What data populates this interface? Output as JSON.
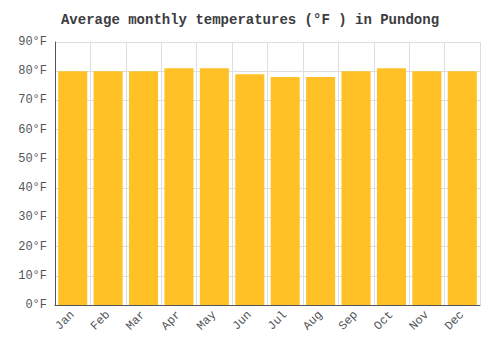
{
  "chart_data": {
    "type": "bar",
    "title": "Average monthly temperatures (°F ) in Pundong",
    "categories": [
      "Jan",
      "Feb",
      "Mar",
      "Apr",
      "May",
      "Jun",
      "Jul",
      "Aug",
      "Sep",
      "Oct",
      "Nov",
      "Dec"
    ],
    "values": [
      80,
      80,
      80,
      81,
      81,
      79,
      78,
      78,
      80,
      81,
      80,
      80
    ],
    "color": "#FFC125",
    "ylim": [
      0,
      90
    ],
    "yticks": [
      {
        "value": 0,
        "label": "0°F"
      },
      {
        "value": 10,
        "label": "10°F"
      },
      {
        "value": 20,
        "label": "20°F"
      },
      {
        "value": 30,
        "label": "30°F"
      },
      {
        "value": 40,
        "label": "40°F"
      },
      {
        "value": 50,
        "label": "50°F"
      },
      {
        "value": 60,
        "label": "60°F"
      },
      {
        "value": 70,
        "label": "70°F"
      },
      {
        "value": 80,
        "label": "80°F"
      },
      {
        "value": 90,
        "label": "90°F"
      }
    ],
    "grid": true
  }
}
